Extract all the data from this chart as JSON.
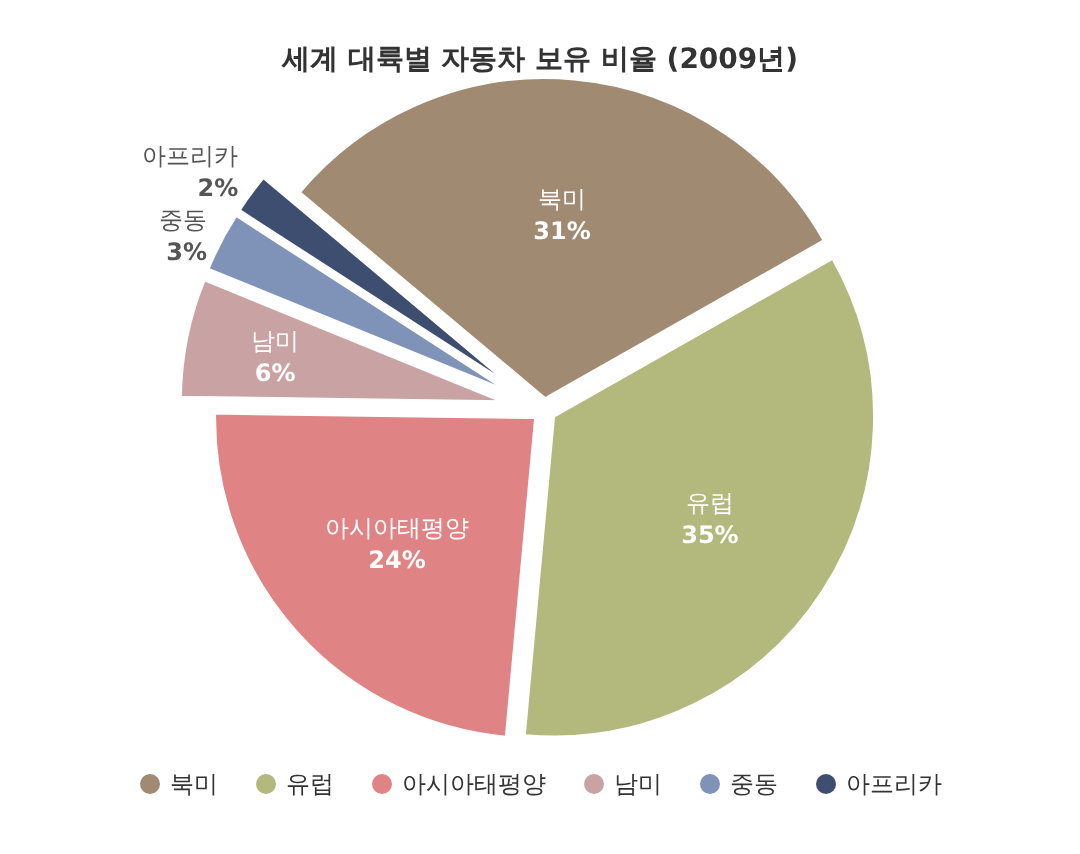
{
  "chart_data": {
    "type": "pie",
    "title": "세계 대륙별 자동차 보유 비율 (2009년)",
    "categories": [
      "북미",
      "유럽",
      "아시아태평양",
      "남미",
      "중동",
      "아프리카"
    ],
    "values": [
      31,
      35,
      24,
      6,
      3,
      2
    ],
    "value_labels": [
      "31%",
      "35%",
      "24%",
      "6%",
      "3%",
      "2%"
    ],
    "colors": [
      "#a08a72",
      "#b3b87c",
      "#e08384",
      "#c9a3a3",
      "#7f93b8",
      "#3e4e70"
    ],
    "legend": "bottom"
  }
}
